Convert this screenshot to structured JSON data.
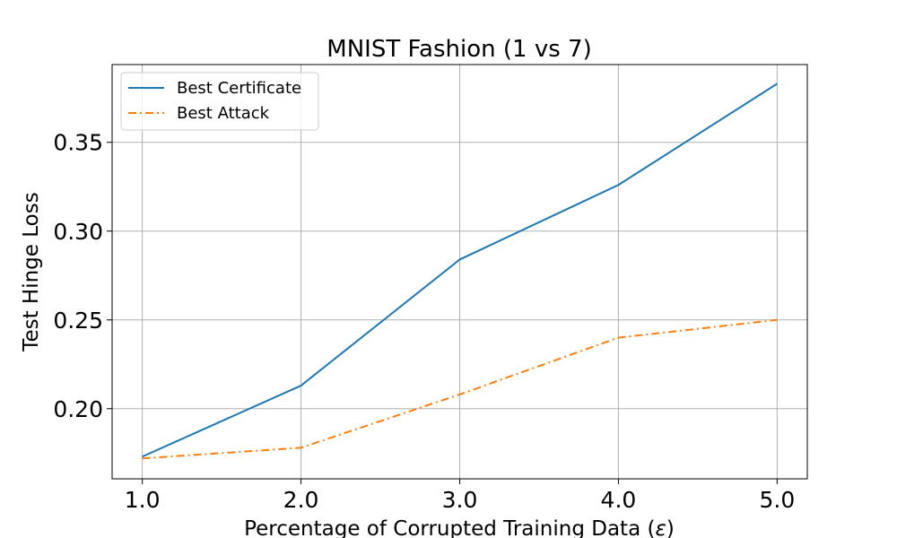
{
  "chart_data": {
    "type": "line",
    "title": "MNIST Fashion (1 vs 7)",
    "xlabel_prefix": "Percentage of Corrupted Training Data (",
    "xlabel_symbol": "ε",
    "xlabel_suffix": ")",
    "ylabel": "Test Hinge Loss",
    "x": [
      1.0,
      2.0,
      3.0,
      4.0,
      5.0
    ],
    "x_tick_labels": [
      "1.0",
      "2.0",
      "3.0",
      "4.0",
      "5.0"
    ],
    "y_ticks": [
      0.2,
      0.25,
      0.3,
      0.35
    ],
    "y_tick_labels": [
      "0.20",
      "0.25",
      "0.30",
      "0.35"
    ],
    "xlim": [
      0.81,
      5.19
    ],
    "ylim": [
      0.1605,
      0.3938
    ],
    "grid": true,
    "legend_position": "top-left",
    "series": [
      {
        "name": "Best Certificate",
        "values": [
          0.173,
          0.213,
          0.284,
          0.326,
          0.383
        ],
        "color": "#1f77b4",
        "dash": "solid"
      },
      {
        "name": "Best Attack",
        "values": [
          0.172,
          0.178,
          0.208,
          0.24,
          0.25
        ],
        "color": "#ff7f0e",
        "dash": "dashdot"
      }
    ]
  }
}
